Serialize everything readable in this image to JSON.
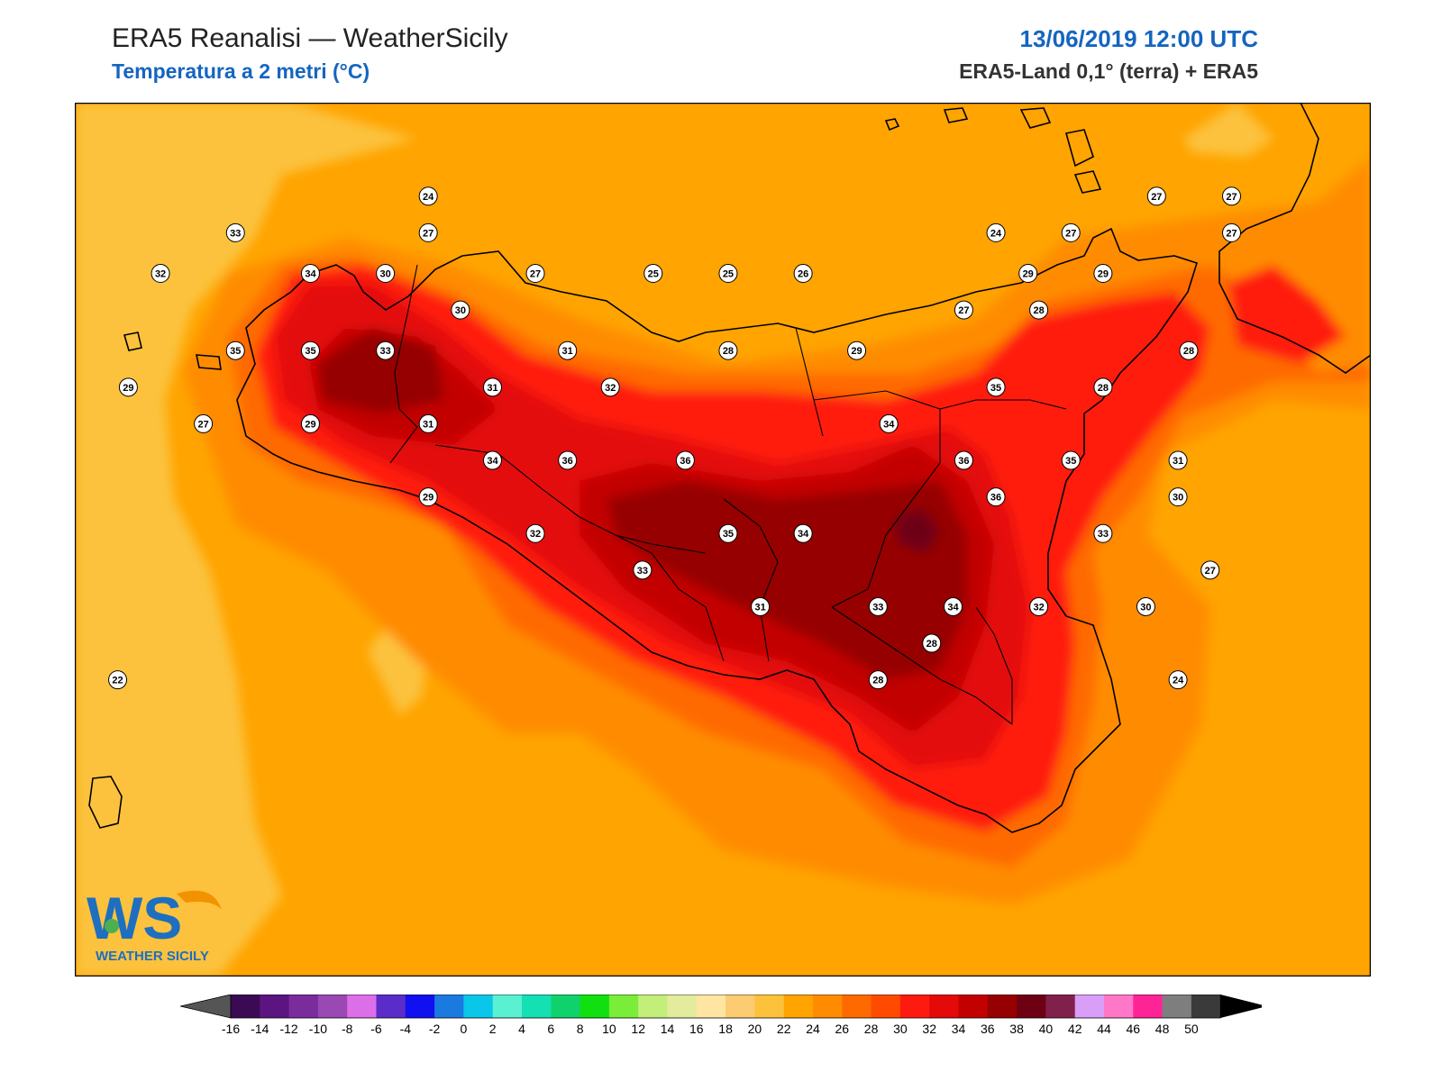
{
  "header": {
    "title": "ERA5 Reanalisi — WeatherSicily",
    "subtitle": "Temperatura a 2 metri (°C)",
    "datetime": "13/06/2019 12:00 UTC",
    "source": "ERA5-Land 0,1° (terra) + ERA5"
  },
  "logo": {
    "letters": "WS",
    "text": "WEATHER SICILY",
    "colors": {
      "blue": "#1e6fc0",
      "orange": "#f39200",
      "green": "#4caf50"
    }
  },
  "colorbar": {
    "ticks": [
      "-16",
      "-14",
      "-12",
      "-10",
      "-8",
      "-6",
      "-4",
      "-2",
      "0",
      "2",
      "4",
      "6",
      "8",
      "10",
      "12",
      "14",
      "16",
      "18",
      "20",
      "22",
      "24",
      "26",
      "28",
      "30",
      "32",
      "34",
      "36",
      "38",
      "40",
      "42",
      "44",
      "46",
      "48",
      "50"
    ],
    "colors": [
      "#3b0a54",
      "#5c1480",
      "#7a2c9c",
      "#9a48b4",
      "#dc6ee8",
      "#5a2cc8",
      "#1010f0",
      "#1a7ae0",
      "#0ac6e8",
      "#5af0d2",
      "#14e0b4",
      "#10d26c",
      "#10e010",
      "#7aec3a",
      "#c4ee7a",
      "#e2ec9c",
      "#ffe4a2",
      "#fccc72",
      "#fcc23c",
      "#ffa400",
      "#ff8c00",
      "#ff6a00",
      "#ff4a00",
      "#ff1a10",
      "#e40a0a",
      "#c20000",
      "#960000",
      "#6e0014",
      "#82204c",
      "#d89ef8",
      "#ff78c8",
      "#ff2496",
      "#7e7e7e",
      "#3a3a3a"
    ],
    "below_color": "#555555",
    "above_color": "#000000"
  },
  "map": {
    "labels": [
      {
        "v": "24",
        "lon": 13.35,
        "lat": 38.22
      },
      {
        "v": "33",
        "lon": 12.45,
        "lat": 38.13
      },
      {
        "v": "27",
        "lon": 13.35,
        "lat": 38.13
      },
      {
        "v": "32",
        "lon": 12.1,
        "lat": 38.03
      },
      {
        "v": "34",
        "lon": 12.8,
        "lat": 38.03
      },
      {
        "v": "30",
        "lon": 13.15,
        "lat": 38.03
      },
      {
        "v": "27",
        "lon": 13.85,
        "lat": 38.03
      },
      {
        "v": "25",
        "lon": 14.4,
        "lat": 38.03
      },
      {
        "v": "25",
        "lon": 14.75,
        "lat": 38.03
      },
      {
        "v": "26",
        "lon": 15.1,
        "lat": 38.03
      },
      {
        "v": "30",
        "lon": 13.5,
        "lat": 37.94
      },
      {
        "v": "35",
        "lon": 12.45,
        "lat": 37.84
      },
      {
        "v": "35",
        "lon": 12.8,
        "lat": 37.84
      },
      {
        "v": "33",
        "lon": 13.15,
        "lat": 37.84
      },
      {
        "v": "31",
        "lon": 14.0,
        "lat": 37.84
      },
      {
        "v": "28",
        "lon": 14.75,
        "lat": 37.84
      },
      {
        "v": "29",
        "lon": 15.35,
        "lat": 37.84
      },
      {
        "v": "29",
        "lon": 11.95,
        "lat": 37.75
      },
      {
        "v": "31",
        "lon": 13.65,
        "lat": 37.75
      },
      {
        "v": "32",
        "lon": 14.2,
        "lat": 37.75
      },
      {
        "v": "27",
        "lon": 12.3,
        "lat": 37.66
      },
      {
        "v": "29",
        "lon": 12.8,
        "lat": 37.66
      },
      {
        "v": "31",
        "lon": 13.35,
        "lat": 37.66
      },
      {
        "v": "34",
        "lon": 13.65,
        "lat": 37.57
      },
      {
        "v": "36",
        "lon": 14.0,
        "lat": 37.57
      },
      {
        "v": "36",
        "lon": 14.55,
        "lat": 37.57
      },
      {
        "v": "29",
        "lon": 13.35,
        "lat": 37.48
      },
      {
        "v": "32",
        "lon": 13.85,
        "lat": 37.39
      },
      {
        "v": "35",
        "lon": 14.75,
        "lat": 37.39
      },
      {
        "v": "34",
        "lon": 15.1,
        "lat": 37.39
      },
      {
        "v": "33",
        "lon": 14.35,
        "lat": 37.3
      },
      {
        "v": "31",
        "lon": 14.9,
        "lat": 37.21
      },
      {
        "v": "33",
        "lon": 15.45,
        "lat": 37.21
      },
      {
        "v": "34",
        "lon": 15.8,
        "lat": 37.21
      },
      {
        "v": "28",
        "lon": 15.45,
        "lat": 37.03
      },
      {
        "v": "22",
        "lon": 11.9,
        "lat": 37.03
      },
      {
        "v": "24",
        "lon": 16.0,
        "lat": 38.13
      },
      {
        "v": "27",
        "lon": 16.35,
        "lat": 38.13
      },
      {
        "v": "29",
        "lon": 16.15,
        "lat": 38.03
      },
      {
        "v": "29",
        "lon": 16.5,
        "lat": 38.03
      },
      {
        "v": "27",
        "lon": 16.75,
        "lat": 38.22
      },
      {
        "v": "27",
        "lon": 17.1,
        "lat": 38.22
      },
      {
        "v": "27",
        "lon": 17.1,
        "lat": 38.13
      },
      {
        "v": "27",
        "lon": 15.85,
        "lat": 37.94
      },
      {
        "v": "28",
        "lon": 16.2,
        "lat": 37.94
      },
      {
        "v": "28",
        "lon": 16.9,
        "lat": 37.84
      },
      {
        "v": "35",
        "lon": 16.0,
        "lat": 37.75
      },
      {
        "v": "28",
        "lon": 16.5,
        "lat": 37.75
      },
      {
        "v": "34",
        "lon": 15.5,
        "lat": 37.66
      },
      {
        "v": "36",
        "lon": 15.85,
        "lat": 37.57
      },
      {
        "v": "35",
        "lon": 16.35,
        "lat": 37.57
      },
      {
        "v": "31",
        "lon": 16.85,
        "lat": 37.57
      },
      {
        "v": "36",
        "lon": 16.0,
        "lat": 37.48
      },
      {
        "v": "30",
        "lon": 16.85,
        "lat": 37.48
      },
      {
        "v": "33",
        "lon": 16.5,
        "lat": 37.39
      },
      {
        "v": "27",
        "lon": 17.0,
        "lat": 37.3
      },
      {
        "v": "32",
        "lon": 16.2,
        "lat": 37.21
      },
      {
        "v": "30",
        "lon": 16.7,
        "lat": 37.21
      },
      {
        "v": "28",
        "lon": 15.7,
        "lat": 37.12
      },
      {
        "v": "24",
        "lon": 16.85,
        "lat": 37.03
      }
    ]
  }
}
